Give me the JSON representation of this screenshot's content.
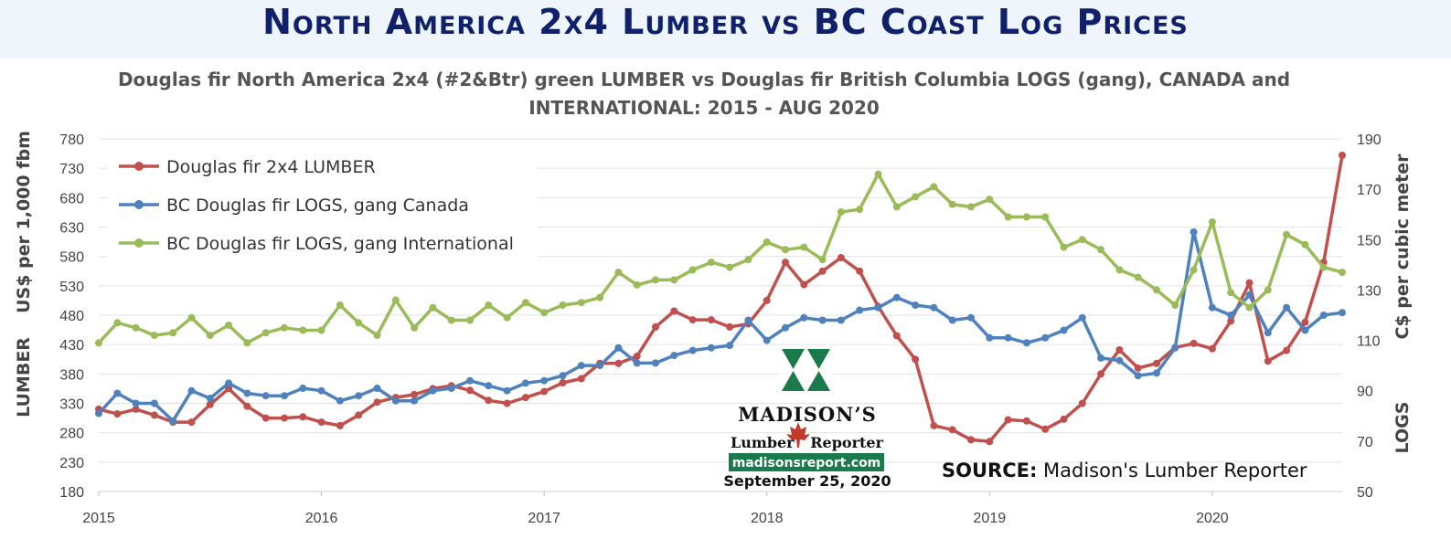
{
  "header": {
    "title": "North America 2x4 Lumber vs BC Coast Log Prices"
  },
  "source": {
    "label": "SOURCE:",
    "text": " Madison's Lumber Reporter"
  },
  "logo": {
    "name": "MADISON’S",
    "sub_left": "Lumber",
    "sub_right": "Reporter",
    "url": "madisonsreport.com",
    "date": "September 25, 2020"
  },
  "colors": {
    "lumber": "#c0504d",
    "logs_canada": "#4f81bd",
    "logs_international": "#9bbb59",
    "logo_green": "#1a7a4c",
    "title_navy": "#10206a"
  },
  "chart_data": {
    "type": "line",
    "title": "Douglas fir North America 2x4 (#2&Btr) green LUMBER vs Douglas fir British Columbia LOGS (gang), CANADA and INTERNATIONAL: 2015 - AUG 2020",
    "x_start": "2015-01",
    "x_end": "2020-08",
    "xlabel": "",
    "x_ticks": [
      "2015",
      "2016",
      "2017",
      "2018",
      "2019",
      "2020"
    ],
    "ylabel_left_top": "US$ per 1,000 fbm",
    "ylabel_left_bottom": "LUMBER",
    "ylabel_right_top": "C$ per cubic meter",
    "ylabel_right_bottom": "LOGS",
    "ylim_left": [
      180,
      780
    ],
    "ylim_right": [
      50,
      190
    ],
    "yticks_left": [
      180,
      230,
      280,
      330,
      380,
      430,
      480,
      530,
      580,
      630,
      680,
      730,
      780
    ],
    "yticks_right": [
      50,
      70,
      90,
      110,
      130,
      150,
      170,
      190
    ],
    "grid": true,
    "legend_position": "top-left",
    "series": [
      {
        "name": "Douglas fir 2x4 LUMBER",
        "axis": "left",
        "color": "#c0504d",
        "points": [
          [
            "2015-01",
            320
          ],
          [
            "2015-02",
            312
          ],
          [
            "2015-03",
            320
          ],
          [
            "2015-04",
            310
          ],
          [
            "2015-05",
            298
          ],
          [
            "2015-06",
            298
          ],
          [
            "2015-07",
            328
          ],
          [
            "2015-08",
            355
          ],
          [
            "2015-09",
            325
          ],
          [
            "2015-10",
            305
          ],
          [
            "2015-11",
            305
          ],
          [
            "2015-12",
            307
          ],
          [
            "2016-01",
            298
          ],
          [
            "2016-02",
            292
          ],
          [
            "2016-03",
            310
          ],
          [
            "2016-04",
            332
          ],
          [
            "2016-05",
            340
          ],
          [
            "2016-06",
            345
          ],
          [
            "2016-07",
            355
          ],
          [
            "2016-08",
            360
          ],
          [
            "2016-09",
            352
          ],
          [
            "2016-10",
            335
          ],
          [
            "2016-11",
            330
          ],
          [
            "2016-12",
            340
          ],
          [
            "2017-01",
            350
          ],
          [
            "2017-02",
            365
          ],
          [
            "2017-03",
            372
          ],
          [
            "2017-04",
            398
          ],
          [
            "2017-05",
            398
          ],
          [
            "2017-06",
            410
          ],
          [
            "2017-07",
            460
          ],
          [
            "2017-08",
            487
          ],
          [
            "2017-09",
            472
          ],
          [
            "2017-10",
            472
          ],
          [
            "2017-11",
            460
          ],
          [
            "2017-12",
            465
          ],
          [
            "2018-01",
            505
          ],
          [
            "2018-02",
            570
          ],
          [
            "2018-03",
            532
          ],
          [
            "2018-04",
            555
          ],
          [
            "2018-05",
            578
          ],
          [
            "2018-06",
            555
          ],
          [
            "2018-07",
            495
          ],
          [
            "2018-08",
            445
          ],
          [
            "2018-09",
            405
          ],
          [
            "2018-10",
            292
          ],
          [
            "2018-11",
            285
          ],
          [
            "2018-12",
            268
          ],
          [
            "2019-01",
            265
          ],
          [
            "2019-02",
            302
          ],
          [
            "2019-03",
            300
          ],
          [
            "2019-04",
            286
          ],
          [
            "2019-05",
            303
          ],
          [
            "2019-06",
            330
          ],
          [
            "2019-07",
            380
          ],
          [
            "2019-08",
            421
          ],
          [
            "2019-09",
            390
          ],
          [
            "2019-10",
            398
          ],
          [
            "2019-11",
            425
          ],
          [
            "2019-12",
            432
          ],
          [
            "2020-01",
            423
          ],
          [
            "2020-02",
            470
          ],
          [
            "2020-03",
            535
          ],
          [
            "2020-04",
            402
          ],
          [
            "2020-05",
            420
          ],
          [
            "2020-06",
            468
          ],
          [
            "2020-07",
            570
          ],
          [
            "2020-08",
            752
          ]
        ]
      },
      {
        "name": "BC Douglas fir LOGS, gang Canada",
        "axis": "right",
        "color": "#4f81bd",
        "points": [
          [
            "2015-01",
            81
          ],
          [
            "2015-02",
            89
          ],
          [
            "2015-03",
            85
          ],
          [
            "2015-04",
            85
          ],
          [
            "2015-05",
            78
          ],
          [
            "2015-06",
            90
          ],
          [
            "2015-07",
            87
          ],
          [
            "2015-08",
            93
          ],
          [
            "2015-09",
            89
          ],
          [
            "2015-10",
            88
          ],
          [
            "2015-11",
            88
          ],
          [
            "2015-12",
            91
          ],
          [
            "2016-01",
            90
          ],
          [
            "2016-02",
            86
          ],
          [
            "2016-03",
            88
          ],
          [
            "2016-04",
            91
          ],
          [
            "2016-05",
            86
          ],
          [
            "2016-06",
            86
          ],
          [
            "2016-07",
            90
          ],
          [
            "2016-08",
            91
          ],
          [
            "2016-09",
            94
          ],
          [
            "2016-10",
            92
          ],
          [
            "2016-11",
            90
          ],
          [
            "2016-12",
            93
          ],
          [
            "2017-01",
            94
          ],
          [
            "2017-02",
            96
          ],
          [
            "2017-03",
            100
          ],
          [
            "2017-04",
            100
          ],
          [
            "2017-05",
            107
          ],
          [
            "2017-06",
            101
          ],
          [
            "2017-07",
            101
          ],
          [
            "2017-08",
            104
          ],
          [
            "2017-09",
            106
          ],
          [
            "2017-10",
            107
          ],
          [
            "2017-11",
            108
          ],
          [
            "2017-12",
            118
          ],
          [
            "2018-01",
            110
          ],
          [
            "2018-02",
            115
          ],
          [
            "2018-03",
            119
          ],
          [
            "2018-04",
            118
          ],
          [
            "2018-05",
            118
          ],
          [
            "2018-06",
            122
          ],
          [
            "2018-07",
            123
          ],
          [
            "2018-08",
            127
          ],
          [
            "2018-09",
            124
          ],
          [
            "2018-10",
            123
          ],
          [
            "2018-11",
            118
          ],
          [
            "2018-12",
            119
          ],
          [
            "2019-01",
            111
          ],
          [
            "2019-02",
            111
          ],
          [
            "2019-03",
            109
          ],
          [
            "2019-04",
            111
          ],
          [
            "2019-05",
            114
          ],
          [
            "2019-06",
            119
          ],
          [
            "2019-07",
            103
          ],
          [
            "2019-08",
            102
          ],
          [
            "2019-09",
            96
          ],
          [
            "2019-10",
            97
          ],
          [
            "2019-11",
            107
          ],
          [
            "2019-12",
            153
          ],
          [
            "2020-01",
            123
          ],
          [
            "2020-02",
            120
          ],
          [
            "2020-03",
            128
          ],
          [
            "2020-04",
            113
          ],
          [
            "2020-05",
            123
          ],
          [
            "2020-06",
            114
          ],
          [
            "2020-07",
            120
          ],
          [
            "2020-08",
            121
          ]
        ]
      },
      {
        "name": "BC Douglas fir LOGS, gang International",
        "axis": "right",
        "color": "#9bbb59",
        "points": [
          [
            "2015-01",
            109
          ],
          [
            "2015-02",
            117
          ],
          [
            "2015-03",
            115
          ],
          [
            "2015-04",
            112
          ],
          [
            "2015-05",
            113
          ],
          [
            "2015-06",
            119
          ],
          [
            "2015-07",
            112
          ],
          [
            "2015-08",
            116
          ],
          [
            "2015-09",
            109
          ],
          [
            "2015-10",
            113
          ],
          [
            "2015-11",
            115
          ],
          [
            "2015-12",
            114
          ],
          [
            "2016-01",
            114
          ],
          [
            "2016-02",
            124
          ],
          [
            "2016-03",
            117
          ],
          [
            "2016-04",
            112
          ],
          [
            "2016-05",
            126
          ],
          [
            "2016-06",
            115
          ],
          [
            "2016-07",
            123
          ],
          [
            "2016-08",
            118
          ],
          [
            "2016-09",
            118
          ],
          [
            "2016-10",
            124
          ],
          [
            "2016-11",
            119
          ],
          [
            "2016-12",
            125
          ],
          [
            "2017-01",
            121
          ],
          [
            "2017-02",
            124
          ],
          [
            "2017-03",
            125
          ],
          [
            "2017-04",
            127
          ],
          [
            "2017-05",
            137
          ],
          [
            "2017-06",
            132
          ],
          [
            "2017-07",
            134
          ],
          [
            "2017-08",
            134
          ],
          [
            "2017-09",
            138
          ],
          [
            "2017-10",
            141
          ],
          [
            "2017-11",
            139
          ],
          [
            "2017-12",
            142
          ],
          [
            "2018-01",
            149
          ],
          [
            "2018-02",
            146
          ],
          [
            "2018-03",
            147
          ],
          [
            "2018-04",
            142
          ],
          [
            "2018-05",
            161
          ],
          [
            "2018-06",
            162
          ],
          [
            "2018-07",
            176
          ],
          [
            "2018-08",
            163
          ],
          [
            "2018-09",
            167
          ],
          [
            "2018-10",
            171
          ],
          [
            "2018-11",
            164
          ],
          [
            "2018-12",
            163
          ],
          [
            "2019-01",
            166
          ],
          [
            "2019-02",
            159
          ],
          [
            "2019-03",
            159
          ],
          [
            "2019-04",
            159
          ],
          [
            "2019-05",
            147
          ],
          [
            "2019-06",
            150
          ],
          [
            "2019-07",
            146
          ],
          [
            "2019-08",
            138
          ],
          [
            "2019-09",
            135
          ],
          [
            "2019-10",
            130
          ],
          [
            "2019-11",
            124
          ],
          [
            "2019-12",
            138
          ],
          [
            "2020-01",
            157
          ],
          [
            "2020-02",
            129
          ],
          [
            "2020-03",
            123
          ],
          [
            "2020-04",
            130
          ],
          [
            "2020-05",
            152
          ],
          [
            "2020-06",
            148
          ],
          [
            "2020-07",
            139
          ],
          [
            "2020-08",
            137
          ]
        ]
      }
    ]
  }
}
